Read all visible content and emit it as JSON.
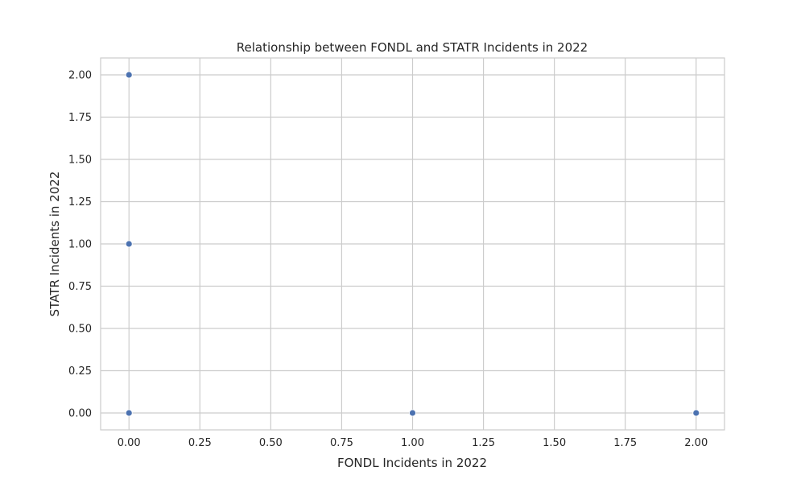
{
  "chart_data": {
    "type": "scatter",
    "title": "Relationship between FONDL and STATR Incidents in 2022",
    "xlabel": "FONDL Incidents in 2022",
    "ylabel": "STATR Incidents in 2022",
    "xlim": [
      -0.1,
      2.1
    ],
    "ylim": [
      -0.1,
      2.1
    ],
    "x_ticks": [
      0.0,
      0.25,
      0.5,
      0.75,
      1.0,
      1.25,
      1.5,
      1.75,
      2.0
    ],
    "x_tick_labels": [
      "0.00",
      "0.25",
      "0.50",
      "0.75",
      "1.00",
      "1.25",
      "1.50",
      "1.75",
      "2.00"
    ],
    "y_ticks": [
      0.0,
      0.25,
      0.5,
      0.75,
      1.0,
      1.25,
      1.5,
      1.75,
      2.0
    ],
    "y_tick_labels": [
      "0.00",
      "0.25",
      "0.50",
      "0.75",
      "1.00",
      "1.25",
      "1.50",
      "1.75",
      "2.00"
    ],
    "grid": true,
    "point_color": "#4c72b0",
    "points": [
      {
        "x": 0,
        "y": 2
      },
      {
        "x": 0,
        "y": 1
      },
      {
        "x": 0,
        "y": 0
      },
      {
        "x": 1,
        "y": 0
      },
      {
        "x": 2,
        "y": 0
      }
    ]
  }
}
